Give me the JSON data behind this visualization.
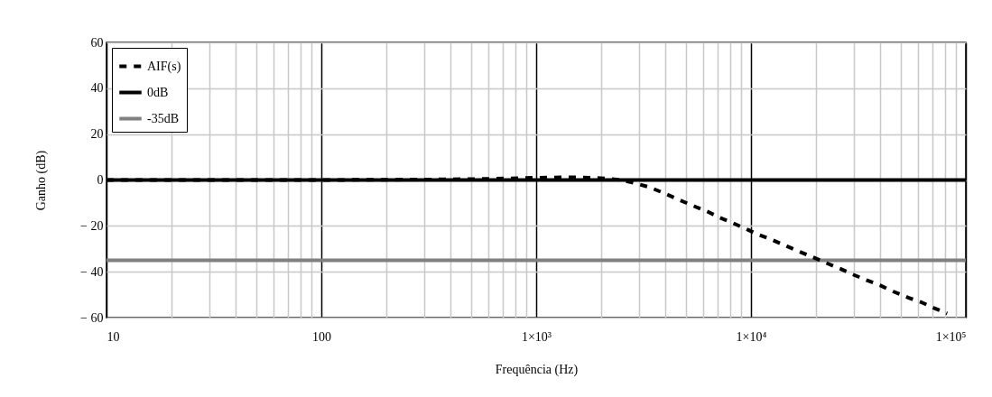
{
  "chart_data": {
    "type": "line",
    "xlabel": "Frequência (Hz)",
    "ylabel": "Ganho (dB)",
    "log": "x",
    "xlim": [
      10,
      100000
    ],
    "ylim": [
      -60,
      60
    ],
    "xticks": [
      10,
      {
        "value": 20,
        "label": null
      },
      {
        "value": 30,
        "label": null
      },
      {
        "value": 40,
        "label": null
      },
      {
        "value": 50,
        "label": null
      },
      {
        "value": 60,
        "label": null
      },
      {
        "value": 70,
        "label": null
      },
      {
        "value": 80,
        "label": null
      },
      {
        "value": 90,
        "label": null
      },
      100,
      {
        "value": 200,
        "label": null
      },
      {
        "value": 300,
        "label": null
      },
      {
        "value": 400,
        "label": null
      },
      {
        "value": 500,
        "label": null
      },
      {
        "value": 600,
        "label": null
      },
      {
        "value": 700,
        "label": null
      },
      {
        "value": 800,
        "label": null
      },
      {
        "value": 900,
        "label": null
      },
      {
        "value": 1000,
        "label": "1×10³"
      },
      {
        "value": 2000,
        "label": null
      },
      {
        "value": 3000,
        "label": null
      },
      {
        "value": 4000,
        "label": null
      },
      {
        "value": 5000,
        "label": null
      },
      {
        "value": 6000,
        "label": null
      },
      {
        "value": 7000,
        "label": null
      },
      {
        "value": 8000,
        "label": null
      },
      {
        "value": 9000,
        "label": null
      },
      {
        "value": 10000,
        "label": "1×10⁴"
      },
      {
        "value": 20000,
        "label": null
      },
      {
        "value": 30000,
        "label": null
      },
      {
        "value": 40000,
        "label": null
      },
      {
        "value": 50000,
        "label": null
      },
      {
        "value": 60000,
        "label": null
      },
      {
        "value": 70000,
        "label": null
      },
      {
        "value": 80000,
        "label": null
      },
      {
        "value": 90000,
        "label": null
      },
      {
        "value": 100000,
        "label": "1×10⁵"
      }
    ],
    "yticks": [
      {
        "value": -60,
        "label": "− 60"
      },
      {
        "value": -40,
        "label": "− 40"
      },
      {
        "value": -20,
        "label": "− 20"
      },
      0,
      20,
      40,
      60
    ],
    "grid": true,
    "legend": "top left",
    "marker": "none",
    "series": [
      {
        "name": "AIF(s)",
        "color": "#000000",
        "line_style": "dashed",
        "x": [
          10,
          100,
          300,
          600,
          1000,
          1500,
          2000,
          2500,
          2860,
          3360,
          3930,
          4540,
          5430,
          6280,
          7140,
          8250,
          9620,
          10900,
          12700,
          14700,
          17000,
          19600,
          22700,
          26200,
          29800,
          34400,
          39800,
          45900,
          53900,
          62400,
          71000,
          81900
        ],
        "values": [
          0,
          0,
          0.2,
          0.5,
          1,
          1.2,
          0.8,
          0,
          -1.3,
          -3.1,
          -5.7,
          -8.3,
          -11.4,
          -13.8,
          -16.4,
          -18.8,
          -21.6,
          -23.9,
          -26.3,
          -28.9,
          -31.4,
          -33.8,
          -36.4,
          -38.8,
          -41.2,
          -43.6,
          -45.9,
          -48.6,
          -51.3,
          -53.4,
          -55.8,
          -58.2
        ]
      },
      {
        "name": "0dB",
        "color": "#000000",
        "line_style": "solid",
        "x": [
          10,
          100000
        ],
        "values": [
          0,
          0
        ]
      },
      {
        "name": "-35dB",
        "color": "#808080",
        "line_style": "solid",
        "x": [
          10,
          100000
        ],
        "values": [
          -35,
          -35
        ]
      }
    ]
  }
}
